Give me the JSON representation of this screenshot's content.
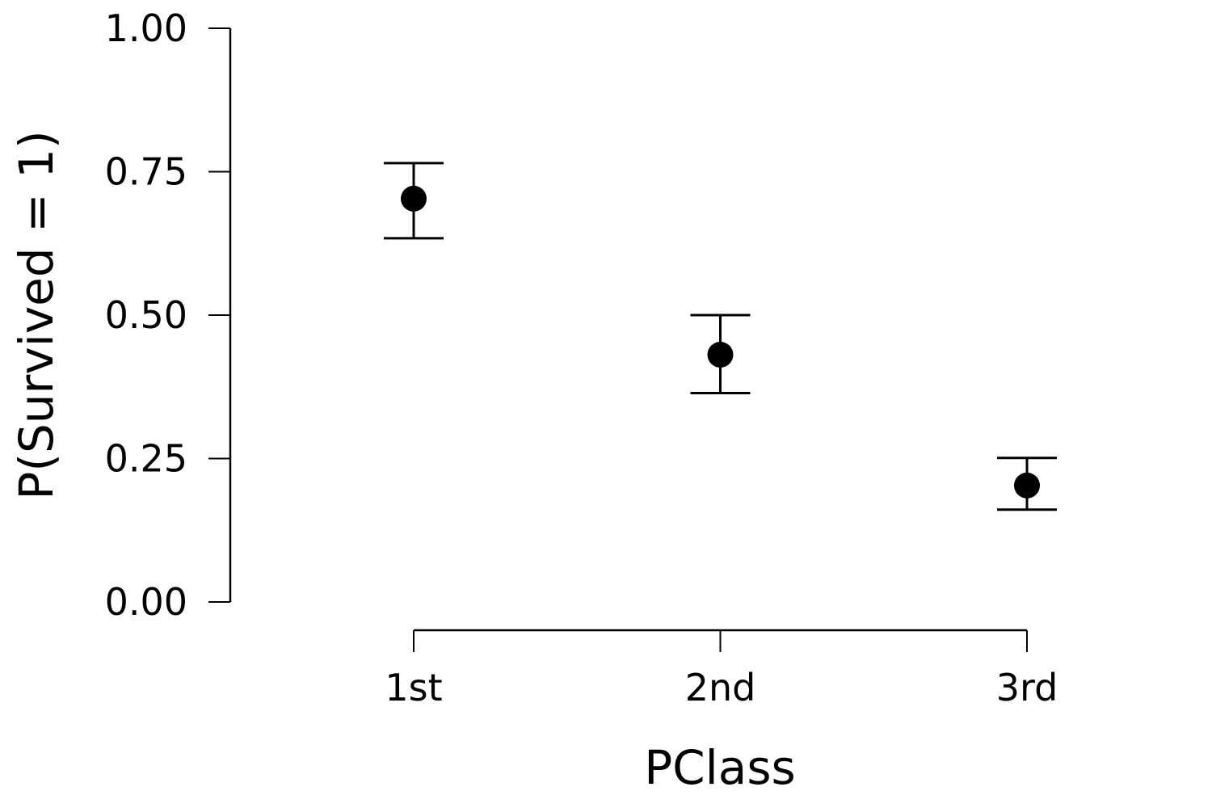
{
  "chart_data": {
    "type": "scatter",
    "title": "",
    "xlabel": "PClass",
    "ylabel": "P(Survived = 1)",
    "categories": [
      "1st",
      "2nd",
      "3rd"
    ],
    "series": [
      {
        "values": [
          0.703,
          0.431,
          0.203
        ],
        "lower": [
          0.634,
          0.364,
          0.161
        ],
        "upper": [
          0.765,
          0.5,
          0.251
        ]
      }
    ],
    "ylim": [
      0,
      1
    ],
    "yticks": [
      "0.00",
      "0.25",
      "0.50",
      "0.75",
      "1.00"
    ],
    "ytick_values": [
      0,
      0.25,
      0.5,
      0.75,
      1.0
    ],
    "grid": false,
    "legend": "none",
    "colors": {
      "marker": "#000000",
      "axis": "#000000"
    }
  }
}
